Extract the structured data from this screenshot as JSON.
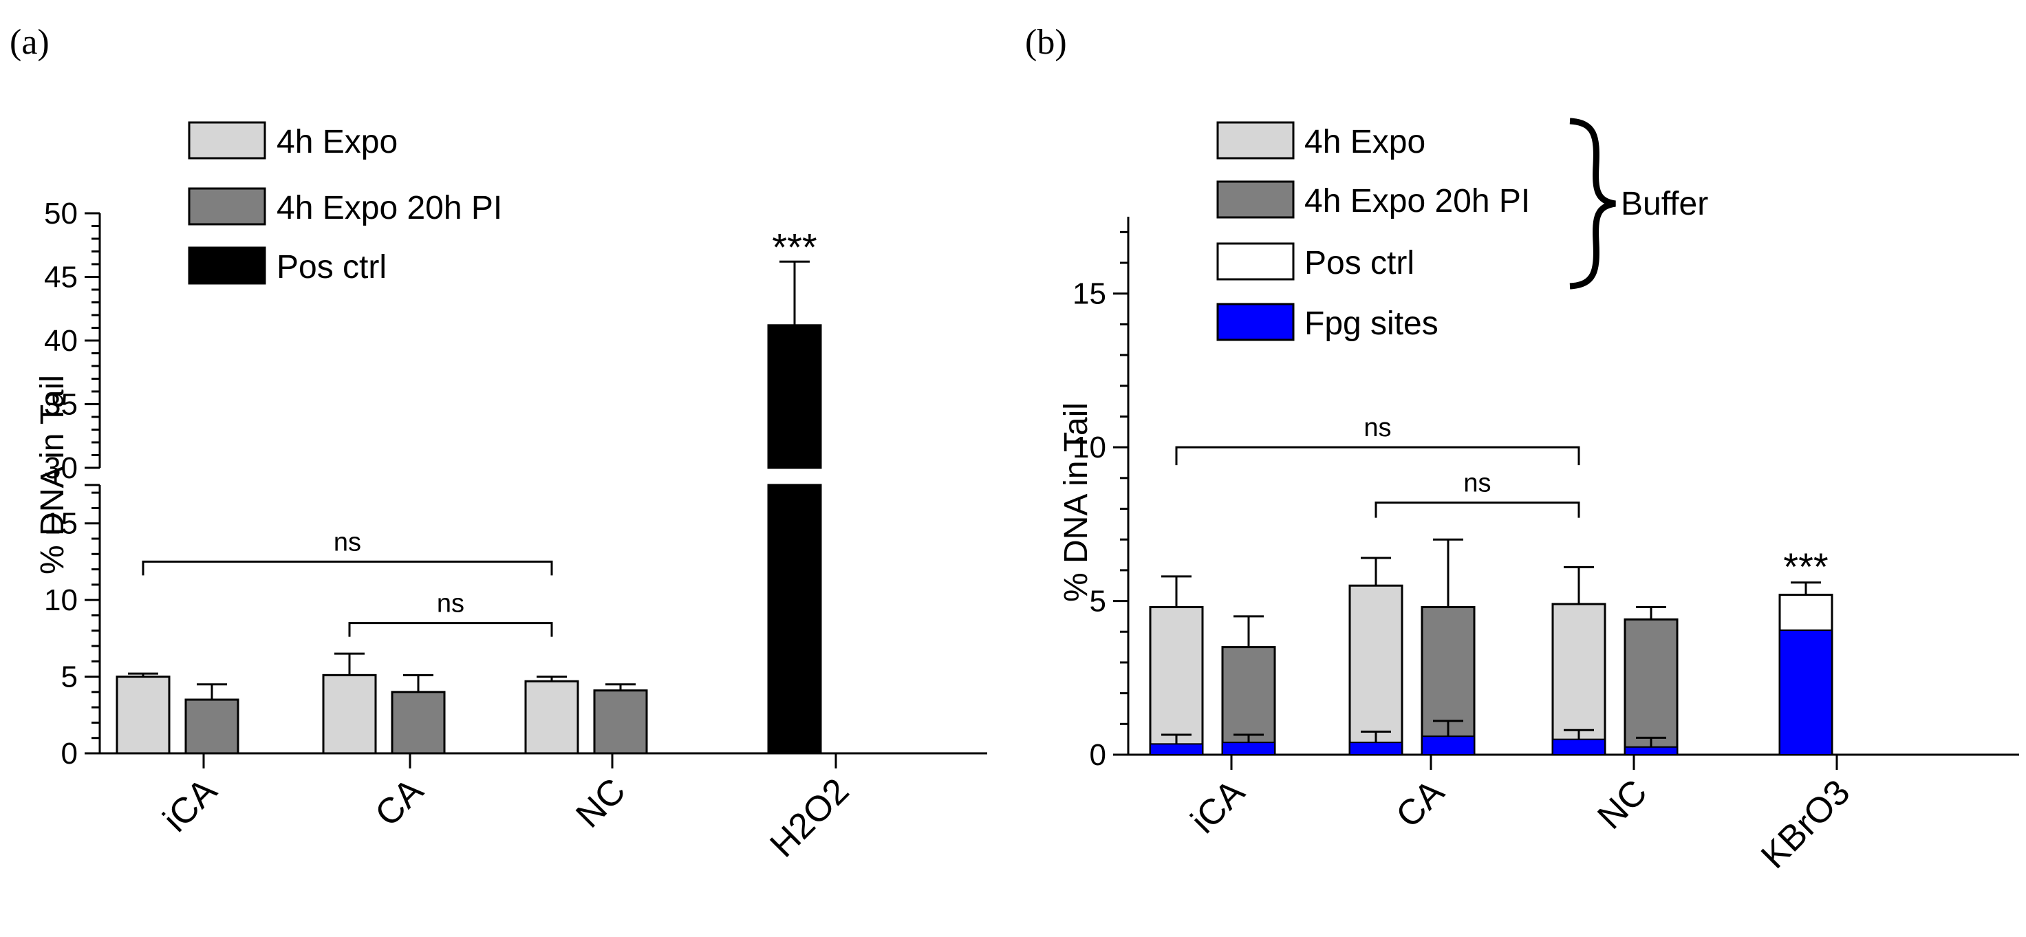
{
  "chart_data": [
    {
      "panel": "(a)",
      "type": "bar",
      "ylabel": "% DNA in Tail",
      "categories": [
        "iCA",
        "CA",
        "NC",
        "H2O2"
      ],
      "ylim_lower": [
        0,
        17.5
      ],
      "ylim_upper": [
        30,
        50
      ],
      "yticks_lower": [
        "0",
        "5",
        "10",
        "15"
      ],
      "yticks_upper": [
        "30",
        "35",
        "40",
        "45",
        "50"
      ],
      "legend": [
        "4h Expo",
        "4h Expo 20h PI",
        "Pos ctrl"
      ],
      "colors": {
        "expo": "#d6d6d6",
        "expo_pi": "#7f7f7f",
        "pos": "#000000"
      },
      "series": [
        {
          "name": "4h Expo",
          "values": [
            5.0,
            5.1,
            4.7,
            null
          ],
          "errors": [
            0.2,
            1.4,
            0.3,
            null
          ]
        },
        {
          "name": "4h Expo 20h PI",
          "values": [
            3.5,
            4.0,
            4.1,
            null
          ],
          "errors": [
            1.0,
            1.1,
            0.4,
            null
          ]
        },
        {
          "name": "Pos ctrl",
          "values": [
            null,
            null,
            null,
            41.2
          ],
          "errors": [
            null,
            null,
            null,
            5.0
          ]
        }
      ],
      "significance": [
        {
          "from": "iCA",
          "to": "NC",
          "label": "ns"
        },
        {
          "from": "CA",
          "to": "NC",
          "label": "ns"
        }
      ],
      "annotation": "***"
    },
    {
      "panel": "(b)",
      "type": "bar",
      "ylabel": "% DNA in Tail",
      "categories": [
        "iCA",
        "CA",
        "NC",
        "KBrO3"
      ],
      "ylim": [
        0,
        17.5
      ],
      "yticks": [
        "0",
        "5",
        "10",
        "15"
      ],
      "legend": [
        "4h Expo",
        "4h Expo 20h PI",
        "Pos ctrl",
        "Fpg sites"
      ],
      "brace_label": "Buffer",
      "colors": {
        "expo": "#d6d6d6",
        "expo_pi": "#7f7f7f",
        "pos": "#ffffff",
        "fpg": "#0000ff"
      },
      "series": [
        {
          "name": "4h Expo",
          "values": [
            4.8,
            5.5,
            4.9,
            null
          ],
          "errors": [
            1.0,
            0.9,
            1.2,
            null
          ]
        },
        {
          "name": "4h Expo 20h PI",
          "values": [
            3.5,
            4.8,
            4.4,
            null
          ],
          "errors": [
            1.0,
            2.2,
            0.4,
            null
          ]
        },
        {
          "name": "Pos ctrl",
          "values": [
            null,
            null,
            null,
            5.2
          ],
          "errors": [
            null,
            null,
            null,
            0.4
          ]
        },
        {
          "name": "Fpg sites",
          "values": [
            0.35,
            0.4,
            0.5,
            4.05
          ],
          "errors": [
            0.3,
            0.35,
            0.3,
            0
          ],
          "pi_values": [
            0.4,
            0.6,
            0.25
          ],
          "pi_errors": [
            0.25,
            0.5,
            0.3
          ]
        }
      ],
      "significance": [
        {
          "from": "iCA",
          "to": "NC",
          "label": "ns"
        },
        {
          "from": "CA",
          "to": "NC",
          "label": "ns"
        }
      ],
      "annotation": "***"
    }
  ]
}
